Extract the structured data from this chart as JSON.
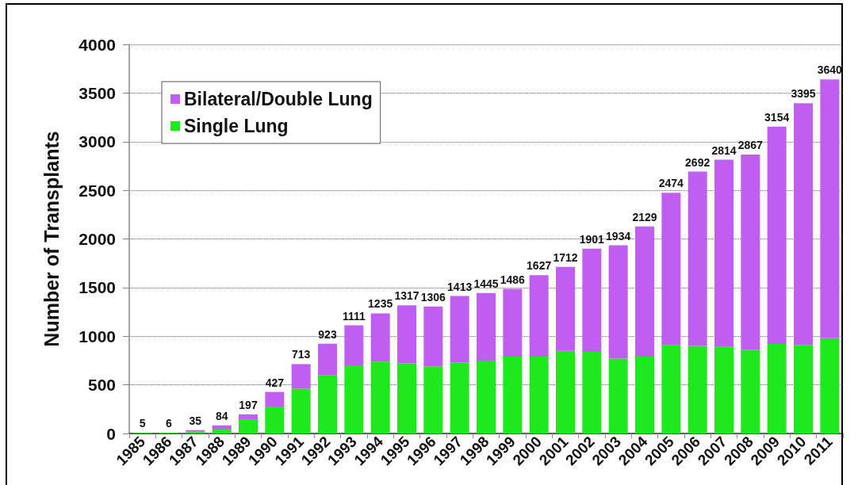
{
  "chart_data": {
    "type": "bar",
    "stacked": true,
    "ylabel": "Number of Transplants",
    "categories": [
      "1985",
      "1986",
      "1987",
      "1988",
      "1989",
      "1990",
      "1991",
      "1992",
      "1993",
      "1994",
      "1995",
      "1996",
      "1997",
      "1998",
      "1999",
      "2000",
      "2001",
      "2002",
      "2003",
      "2004",
      "2005",
      "2006",
      "2007",
      "2008",
      "2009",
      "2010",
      "2011"
    ],
    "series": [
      {
        "name": "Single Lung",
        "color": "#1ee81e",
        "values": [
          5,
          6,
          20,
          40,
          140,
          270,
          460,
          600,
          700,
          740,
          720,
          690,
          730,
          750,
          790,
          790,
          850,
          840,
          770,
          790,
          910,
          900,
          890,
          860,
          920,
          910,
          980
        ]
      },
      {
        "name": "Bilateral/Double Lung",
        "color": "#c05ef2",
        "values": [
          0,
          0,
          15,
          44,
          57,
          157,
          253,
          323,
          411,
          495,
          597,
          616,
          683,
          695,
          696,
          837,
          862,
          1061,
          1164,
          1339,
          1564,
          1792,
          1924,
          2007,
          2234,
          2485,
          2660
        ]
      }
    ],
    "totals": [
      "5",
      "6",
      "35",
      "84",
      "197",
      "427",
      "713",
      "923",
      "1111",
      "1235",
      "1317",
      "1306",
      "1413",
      "1445",
      "1486",
      "1627",
      "1712",
      "1901",
      "1934",
      "2129",
      "2474",
      "2692",
      "2814",
      "2867",
      "3154",
      "3395",
      "3640"
    ],
    "ylim": [
      0,
      4000
    ],
    "yticks": [
      0,
      500,
      1000,
      1500,
      2000,
      2500,
      3000,
      3500,
      4000
    ],
    "grid": "y",
    "legend": "top left"
  }
}
